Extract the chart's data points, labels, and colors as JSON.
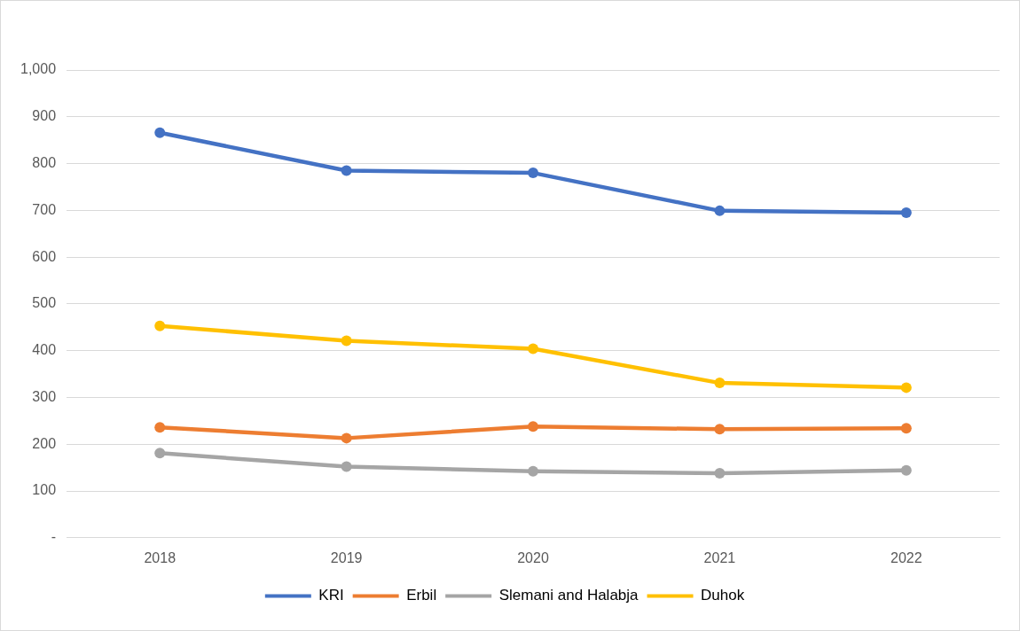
{
  "chart_data": {
    "type": "line",
    "categories": [
      "2018",
      "2019",
      "2020",
      "2021",
      "2022"
    ],
    "series": [
      {
        "name": "KRI",
        "color": "#4472c4",
        "values": [
          866,
          785,
          780,
          699,
          695
        ]
      },
      {
        "name": "Erbil",
        "color": "#ed7d31",
        "values": [
          236,
          213,
          238,
          232,
          234
        ]
      },
      {
        "name": "Slemani and Halabja",
        "color": "#a5a5a5",
        "values": [
          181,
          152,
          142,
          138,
          144
        ]
      },
      {
        "name": "Duhok",
        "color": "#ffc000",
        "values": [
          453,
          421,
          404,
          331,
          321
        ]
      }
    ],
    "ylim": [
      0,
      1000
    ],
    "yticks": [
      {
        "value": 0,
        "label": "-"
      },
      100,
      200,
      300,
      400,
      500,
      600,
      700,
      800,
      900,
      {
        "value": 1000,
        "label": "1,000"
      }
    ],
    "grid": "y",
    "legend": "bottom",
    "marker": "circle",
    "line_style": "solid"
  }
}
